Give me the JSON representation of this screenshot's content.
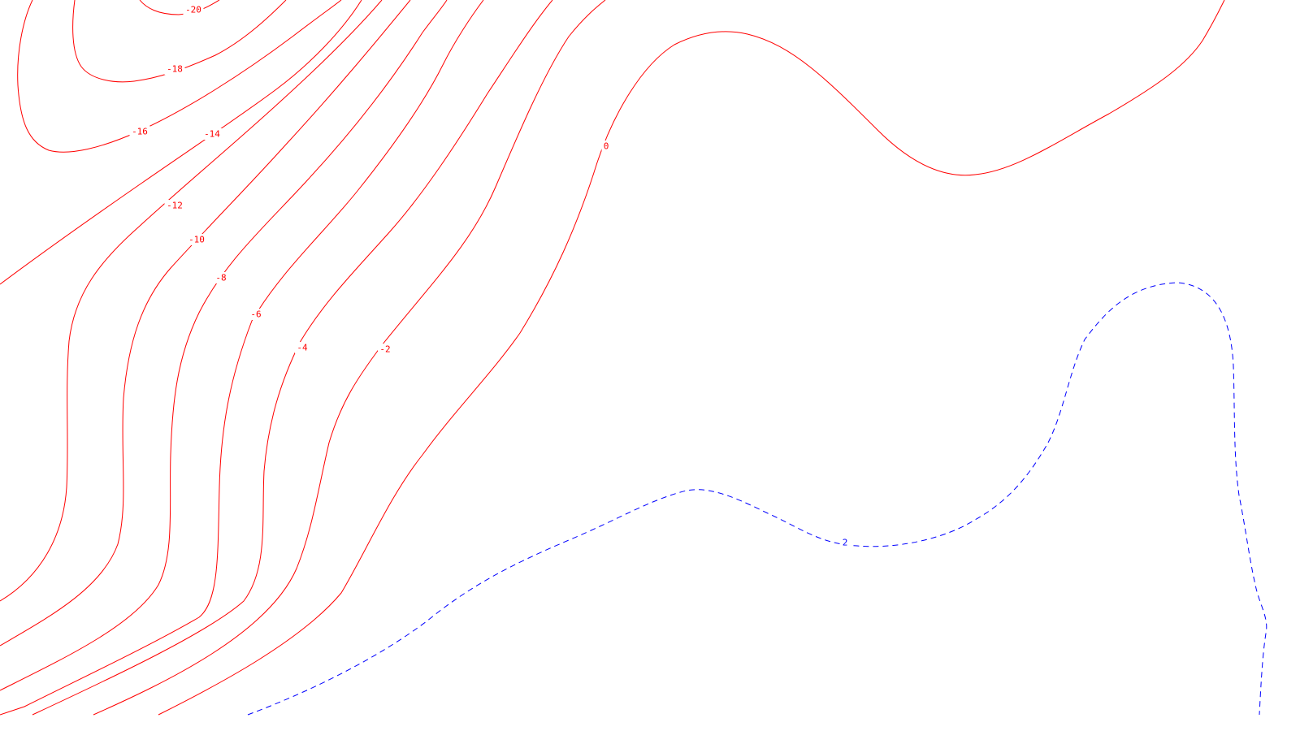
{
  "chart_data": {
    "type": "contour",
    "title": "",
    "xlabel": "",
    "ylabel": "",
    "grid": false,
    "colors": {
      "negative": "#ff0000",
      "positive": "#0000ff",
      "background": "#ffffff"
    },
    "line_styles": {
      "negative": "solid",
      "positive": "dashed"
    },
    "levels": [
      {
        "value": -20,
        "label": "-20",
        "sign": "negative"
      },
      {
        "value": -18,
        "label": "-18",
        "sign": "negative"
      },
      {
        "value": -16,
        "label": "-16",
        "sign": "negative"
      },
      {
        "value": -14,
        "label": "-14",
        "sign": "negative"
      },
      {
        "value": -12,
        "label": "-12",
        "sign": "negative"
      },
      {
        "value": -10,
        "label": "-10",
        "sign": "negative"
      },
      {
        "value": -8,
        "label": "-8",
        "sign": "negative"
      },
      {
        "value": -6,
        "label": "-6",
        "sign": "negative"
      },
      {
        "value": -4,
        "label": "-4",
        "sign": "negative"
      },
      {
        "value": -2,
        "label": "-2",
        "sign": "negative"
      },
      {
        "value": 0,
        "label": "0",
        "sign": "negative"
      },
      {
        "value": 2,
        "label": "2",
        "sign": "positive"
      }
    ]
  }
}
